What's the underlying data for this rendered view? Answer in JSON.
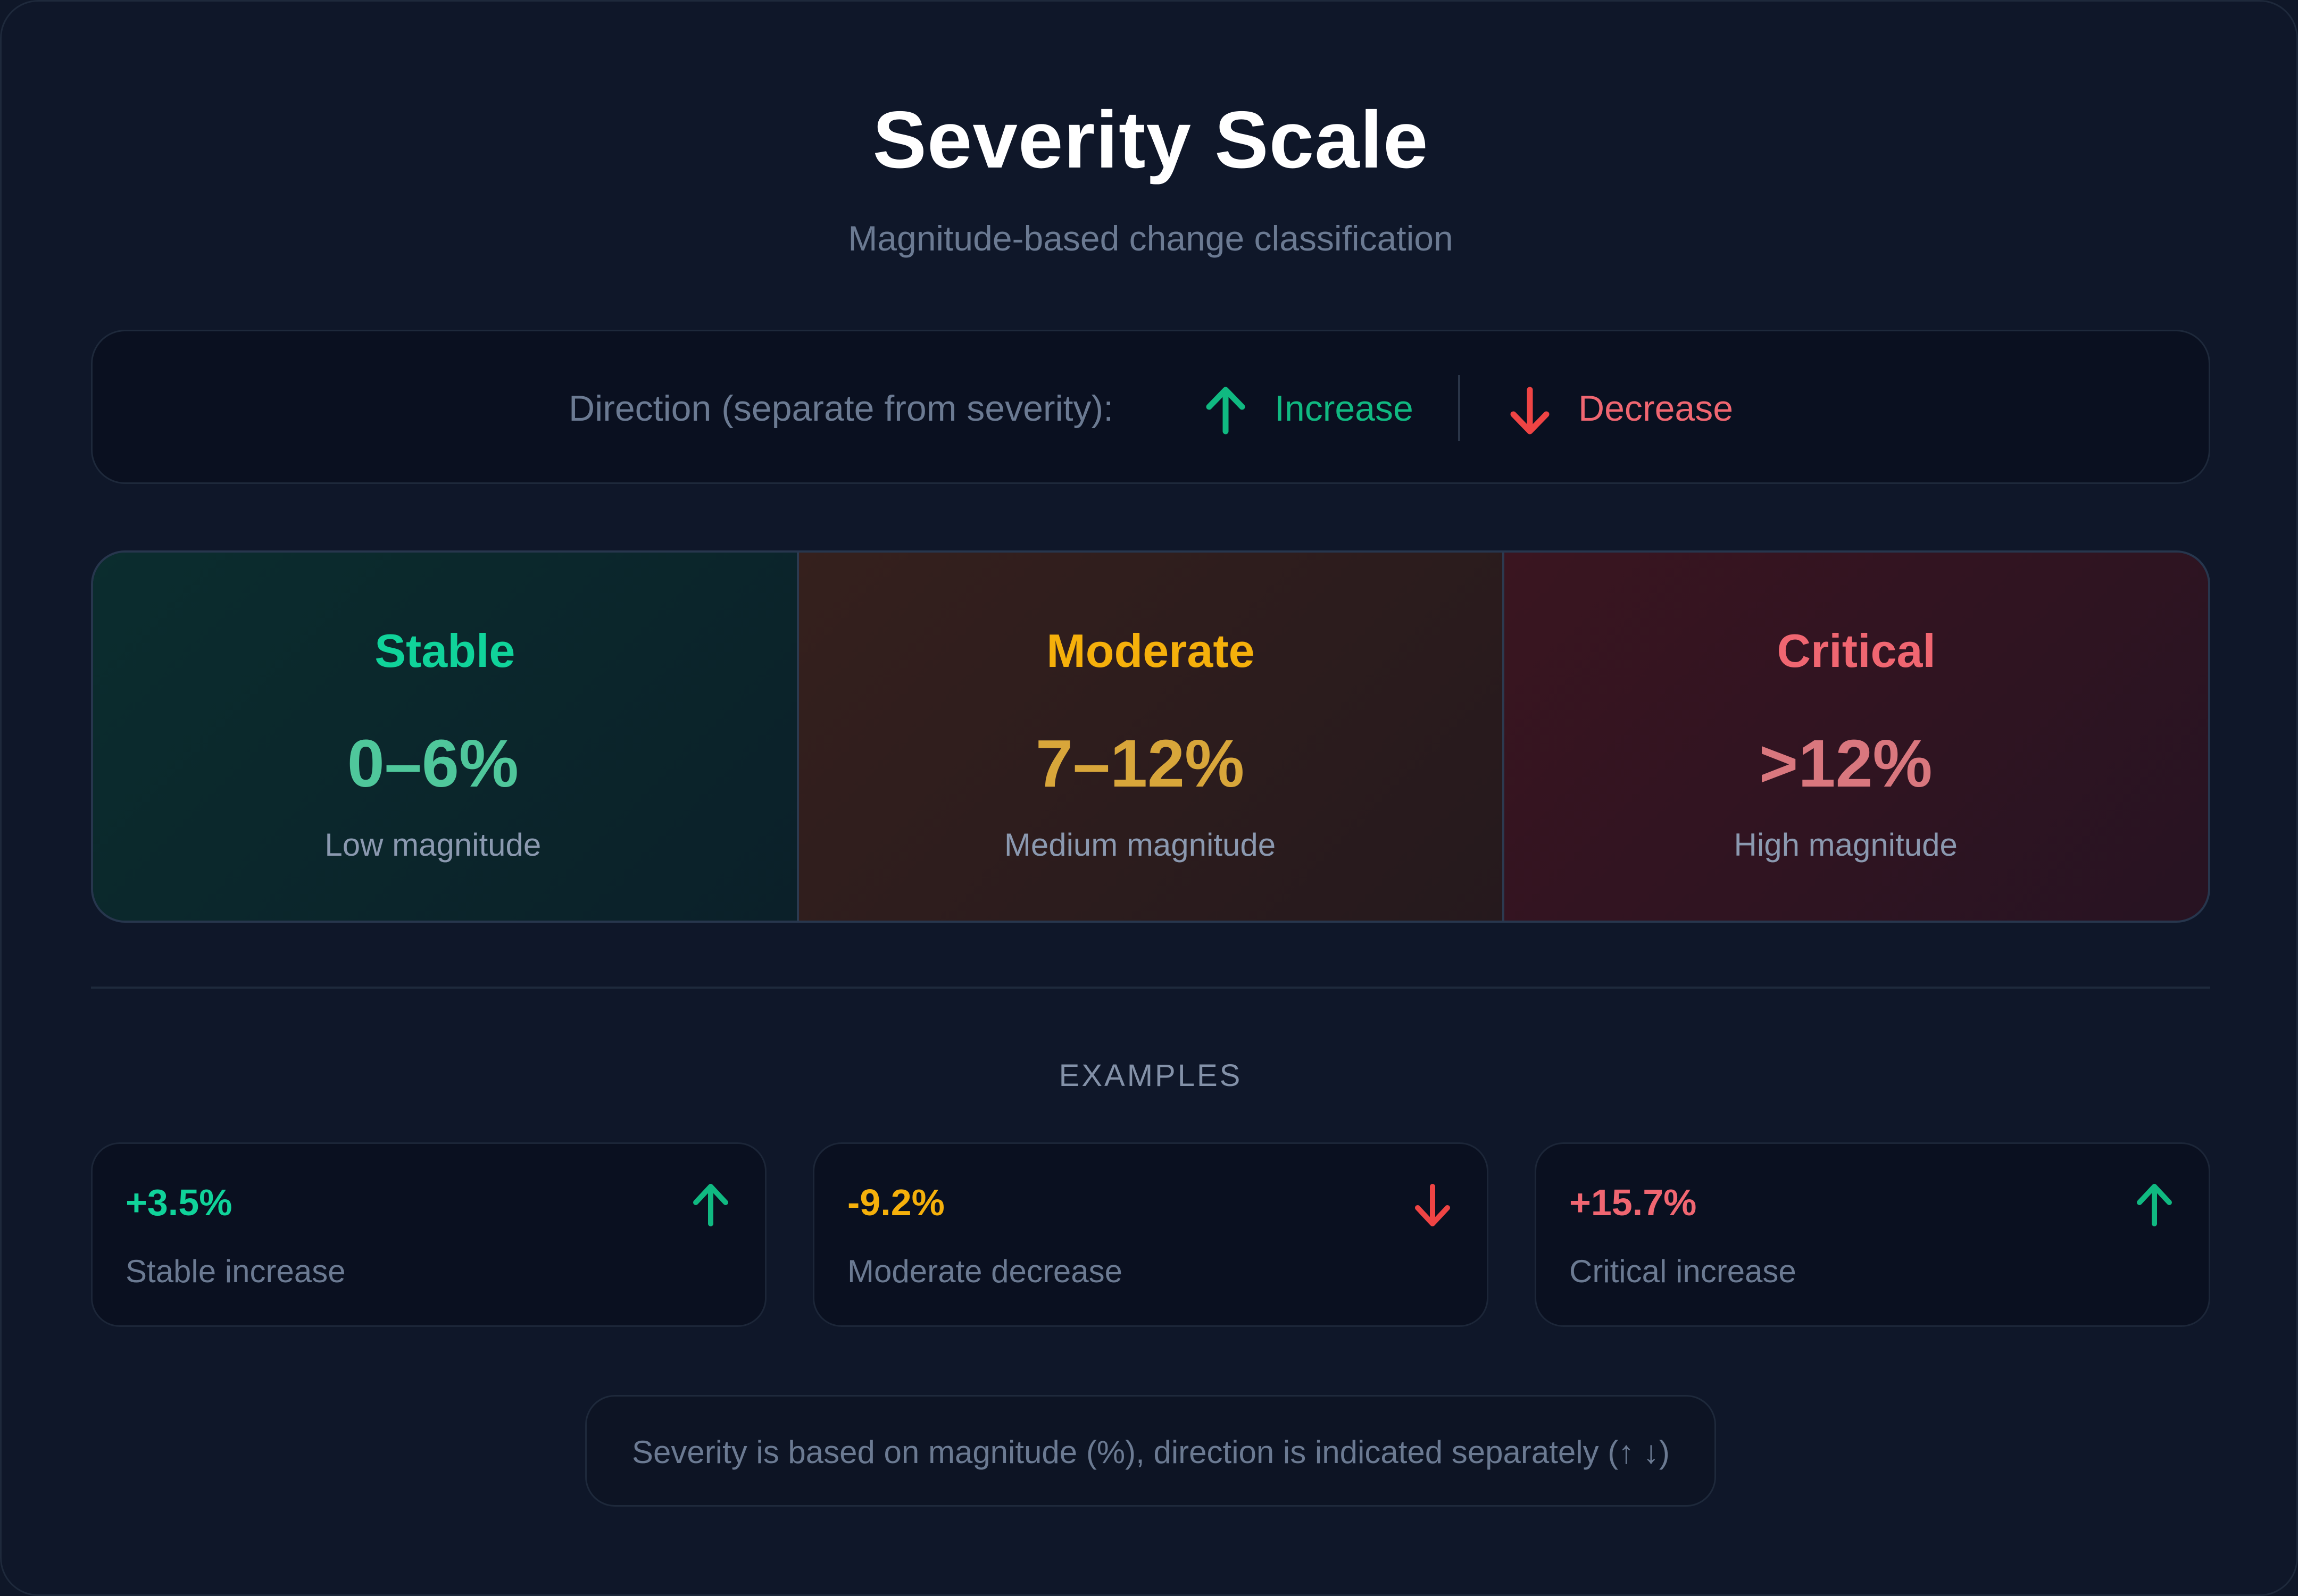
{
  "header": {
    "title": "Severity Scale",
    "subtitle": "Magnitude-based change classification"
  },
  "direction": {
    "label": "Direction (separate from severity):",
    "increase": {
      "icon": "arrow-up-icon",
      "label": "Increase",
      "color": "#10b981"
    },
    "decrease": {
      "icon": "arrow-down-icon",
      "label": "Decrease",
      "color": "#ef4444"
    }
  },
  "levels": [
    {
      "name": "Stable",
      "range": "0–6%",
      "description": "Low magnitude",
      "color": "#10d39a",
      "range_color": "#4fc79b"
    },
    {
      "name": "Moderate",
      "range": "7–12%",
      "description": "Medium magnitude",
      "color": "#f5b00b",
      "range_color": "#d8a63a"
    },
    {
      "name": "Critical",
      "range": ">12%",
      "description": "High magnitude",
      "color": "#f06671",
      "range_color": "#d9777e"
    }
  ],
  "examples_heading": "EXAMPLES",
  "examples": [
    {
      "value": "+3.5%",
      "label": "Stable increase",
      "value_color": "#10d39a",
      "icon": "arrow-up-icon",
      "icon_color": "#10b981"
    },
    {
      "value": "-9.2%",
      "label": "Moderate decrease",
      "value_color": "#f5b00b",
      "icon": "arrow-down-icon",
      "icon_color": "#ef4444"
    },
    {
      "value": "+15.7%",
      "label": "Critical increase",
      "value_color": "#f06671",
      "icon": "arrow-up-icon",
      "icon_color": "#10b981"
    }
  ],
  "note": "Severity is based on magnitude (%), direction is indicated separately (↑ ↓)"
}
